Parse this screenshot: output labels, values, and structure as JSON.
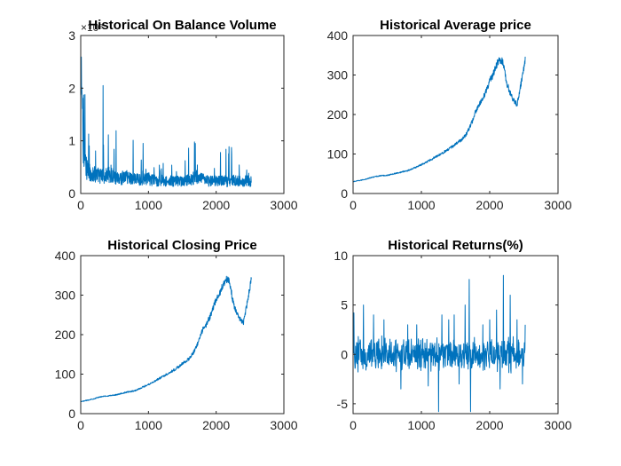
{
  "chart_data": [
    {
      "type": "line",
      "title": "Historical On Balance Volume",
      "xlabel": "",
      "ylabel": "",
      "xlim": [
        0,
        3000
      ],
      "ylim": [
        0,
        300000000
      ],
      "xticks": [
        0,
        1000,
        2000,
        3000
      ],
      "yticks": [
        0,
        100000000,
        200000000,
        300000000
      ],
      "xtick_labels": [
        "0",
        "1000",
        "2000",
        "3000"
      ],
      "ytick_labels": [
        "0",
        "1",
        "2",
        "3"
      ],
      "y_exponent_label": "×10⁸",
      "grid": false,
      "line_color": "#0072BD",
      "series": [
        {
          "x": [
            0,
            10,
            20,
            40,
            80,
            120,
            160,
            200,
            240,
            280,
            320,
            360,
            400,
            440,
            480,
            520,
            560,
            600,
            640,
            680,
            720,
            760,
            800,
            840,
            880,
            920,
            960,
            1000,
            1040,
            1080,
            1120,
            1160,
            1200,
            1240,
            1280,
            1320,
            1360,
            1400,
            1440,
            1480,
            1520,
            1560,
            1600,
            1640,
            1680,
            1720,
            1760,
            1800,
            1840,
            1880,
            1920,
            1960,
            2000,
            2040,
            2080,
            2120,
            2160,
            2200,
            2240,
            2280,
            2320,
            2360,
            2400,
            2440,
            2480,
            2520
          ],
          "y": [
            230000000,
            250000000,
            150000000,
            90000000,
            50000000,
            40000000,
            38000000,
            36000000,
            35000000,
            34000000,
            33000000,
            32000000,
            35000000,
            38000000,
            34000000,
            32000000,
            30000000,
            29000000,
            31000000,
            33000000,
            30000000,
            29000000,
            28000000,
            27000000,
            27000000,
            26000000,
            27000000,
            28000000,
            26000000,
            25000000,
            25000000,
            24000000,
            25000000,
            24000000,
            23000000,
            24000000,
            23000000,
            24000000,
            23000000,
            22000000,
            23000000,
            24000000,
            25000000,
            28000000,
            30000000,
            31000000,
            28000000,
            26000000,
            25000000,
            24000000,
            24000000,
            23000000,
            24000000,
            25000000,
            24000000,
            24000000,
            23000000,
            24000000,
            25000000,
            24000000,
            25000000,
            24000000,
            23000000,
            24000000,
            23000000,
            22000000
          ]
        }
      ]
    },
    {
      "type": "line",
      "title": "Historical Average price",
      "xlabel": "",
      "ylabel": "",
      "xlim": [
        0,
        3000
      ],
      "ylim": [
        0,
        400
      ],
      "xticks": [
        0,
        1000,
        2000,
        3000
      ],
      "yticks": [
        0,
        100,
        200,
        300,
        400
      ],
      "xtick_labels": [
        "0",
        "1000",
        "2000",
        "3000"
      ],
      "ytick_labels": [
        "0",
        "100",
        "200",
        "300",
        "400"
      ],
      "grid": false,
      "line_color": "#0072BD",
      "series": [
        {
          "x": [
            0,
            100,
            200,
            300,
            400,
            500,
            600,
            700,
            800,
            900,
            1000,
            1100,
            1200,
            1300,
            1400,
            1500,
            1600,
            1650,
            1700,
            1750,
            1800,
            1850,
            1900,
            1950,
            2000,
            2050,
            2100,
            2150,
            2200,
            2250,
            2300,
            2350,
            2400,
            2450,
            2500,
            2520
          ],
          "y": [
            30,
            33,
            37,
            42,
            45,
            46,
            50,
            54,
            58,
            65,
            73,
            82,
            92,
            102,
            112,
            125,
            138,
            148,
            165,
            185,
            210,
            225,
            240,
            262,
            285,
            300,
            325,
            340,
            330,
            280,
            255,
            235,
            225,
            270,
            320,
            340
          ]
        }
      ]
    },
    {
      "type": "line",
      "title": "Historical Closing Price",
      "xlabel": "",
      "ylabel": "",
      "xlim": [
        0,
        3000
      ],
      "ylim": [
        0,
        400
      ],
      "xticks": [
        0,
        1000,
        2000,
        3000
      ],
      "yticks": [
        0,
        100,
        200,
        300,
        400
      ],
      "xtick_labels": [
        "0",
        "1000",
        "2000",
        "3000"
      ],
      "ytick_labels": [
        "0",
        "100",
        "200",
        "300",
        "400"
      ],
      "grid": false,
      "line_color": "#0072BD",
      "series": [
        {
          "x": [
            0,
            100,
            200,
            300,
            400,
            500,
            600,
            700,
            800,
            900,
            1000,
            1100,
            1200,
            1300,
            1400,
            1500,
            1600,
            1650,
            1700,
            1750,
            1800,
            1850,
            1900,
            1950,
            2000,
            2050,
            2100,
            2150,
            2200,
            2250,
            2300,
            2350,
            2400,
            2450,
            2500,
            2520
          ],
          "y": [
            30,
            34,
            38,
            43,
            45,
            47,
            51,
            55,
            58,
            66,
            74,
            83,
            93,
            103,
            113,
            126,
            139,
            150,
            166,
            187,
            212,
            224,
            242,
            265,
            288,
            302,
            328,
            342,
            332,
            282,
            258,
            238,
            228,
            272,
            322,
            342
          ]
        }
      ]
    },
    {
      "type": "line",
      "title": "Historical Returns(%)",
      "xlabel": "",
      "ylabel": "",
      "xlim": [
        0,
        3000
      ],
      "ylim": [
        -6,
        10
      ],
      "xticks": [
        0,
        1000,
        2000,
        3000
      ],
      "yticks": [
        -5,
        0,
        5,
        10
      ],
      "xtick_labels": [
        "0",
        "1000",
        "2000",
        "3000"
      ],
      "ytick_labels": [
        "-5",
        "0",
        "5",
        "10"
      ],
      "grid": false,
      "line_color": "#0072BD",
      "series": [
        {
          "x": [
            0,
            2520
          ],
          "y": [
            0,
            0
          ],
          "amplitude_range": [
            -6,
            8
          ],
          "spikes": [
            [
              10,
              4.2
            ],
            [
              150,
              5.0
            ],
            [
              300,
              4.0
            ],
            [
              450,
              3.5
            ],
            [
              700,
              -3.5
            ],
            [
              800,
              3.0
            ],
            [
              930,
              3.0
            ],
            [
              1100,
              -3.2
            ],
            [
              1250,
              -5.8
            ],
            [
              1300,
              4.0
            ],
            [
              1400,
              3.5
            ],
            [
              1480,
              4.0
            ],
            [
              1550,
              -3.0
            ],
            [
              1640,
              5.0
            ],
            [
              1700,
              7.6
            ],
            [
              1720,
              -5.8
            ],
            [
              1900,
              3.0
            ],
            [
              2000,
              3.5
            ],
            [
              2100,
              4.5
            ],
            [
              2150,
              -3.5
            ],
            [
              2200,
              8.0
            ],
            [
              2300,
              6.0
            ],
            [
              2400,
              3.5
            ],
            [
              2480,
              -3.0
            ],
            [
              2520,
              3.0
            ]
          ]
        }
      ]
    }
  ]
}
